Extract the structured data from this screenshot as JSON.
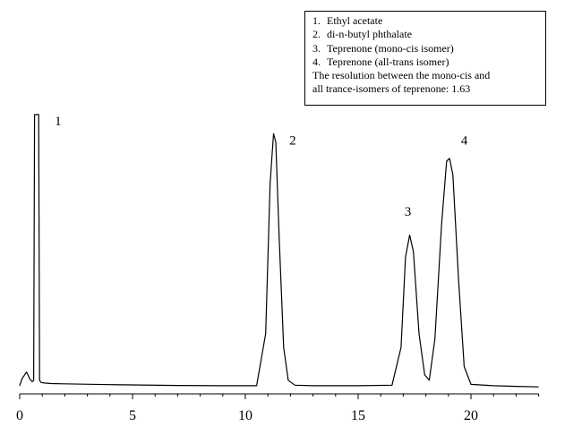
{
  "chart_data": {
    "type": "line",
    "title": "",
    "xlabel": "",
    "ylabel": "",
    "xlim": [
      0,
      23
    ],
    "ylim": [
      0,
      100
    ],
    "xticks": [
      0,
      5,
      10,
      15,
      20
    ],
    "grid": false,
    "legend_position": "top-right",
    "series": [
      {
        "color": "#000000",
        "baseline": 1.2,
        "x": [
          0,
          0.1,
          0.3,
          0.45,
          0.55,
          0.62,
          0.66,
          0.7,
          0.8,
          0.84,
          0.88,
          0.95,
          1.1,
          1.4,
          2,
          4,
          7,
          9,
          10.5,
          10.9,
          11.1,
          11.25,
          11.35,
          11.5,
          11.7,
          11.9,
          12.2,
          13,
          15,
          16.5,
          16.9,
          17.1,
          17.28,
          17.45,
          17.7,
          17.95,
          18.15,
          18.4,
          18.7,
          18.92,
          19.05,
          19.2,
          19.45,
          19.7,
          20,
          21,
          22,
          23
        ],
        "y": [
          1,
          3.5,
          6,
          3.5,
          2.5,
          3,
          100,
          100,
          100,
          100,
          3,
          2.2,
          2,
          1.8,
          1.7,
          1.4,
          1.1,
          1,
          1,
          20,
          75,
          93,
          90,
          55,
          15,
          3,
          1.2,
          1,
          1,
          1.2,
          15,
          48,
          56,
          50,
          20,
          5,
          3,
          18,
          60,
          83,
          84,
          78,
          40,
          8,
          1.5,
          1,
          0.8,
          0.6
        ]
      }
    ],
    "peak_labels": [
      {
        "label": "1",
        "x": 1.7,
        "y": 96
      },
      {
        "label": "2",
        "x": 12.1,
        "y": 89
      },
      {
        "label": "3",
        "x": 17.2,
        "y": 63
      },
      {
        "label": "4",
        "x": 19.7,
        "y": 89
      }
    ],
    "legend_entries": [
      {
        "num": "1.",
        "text": "Ethyl acetate"
      },
      {
        "num": "2.",
        "text": "di-n-butyl phthalate"
      },
      {
        "num": "3.",
        "text": "Teprenone (mono-cis isomer)"
      },
      {
        "num": "4.",
        "text": "Teprenone (all-trans isomer)"
      }
    ],
    "annotation": [
      "The resolution between the mono-cis and",
      "all trance-isomers of teprenone: 1.63"
    ]
  }
}
